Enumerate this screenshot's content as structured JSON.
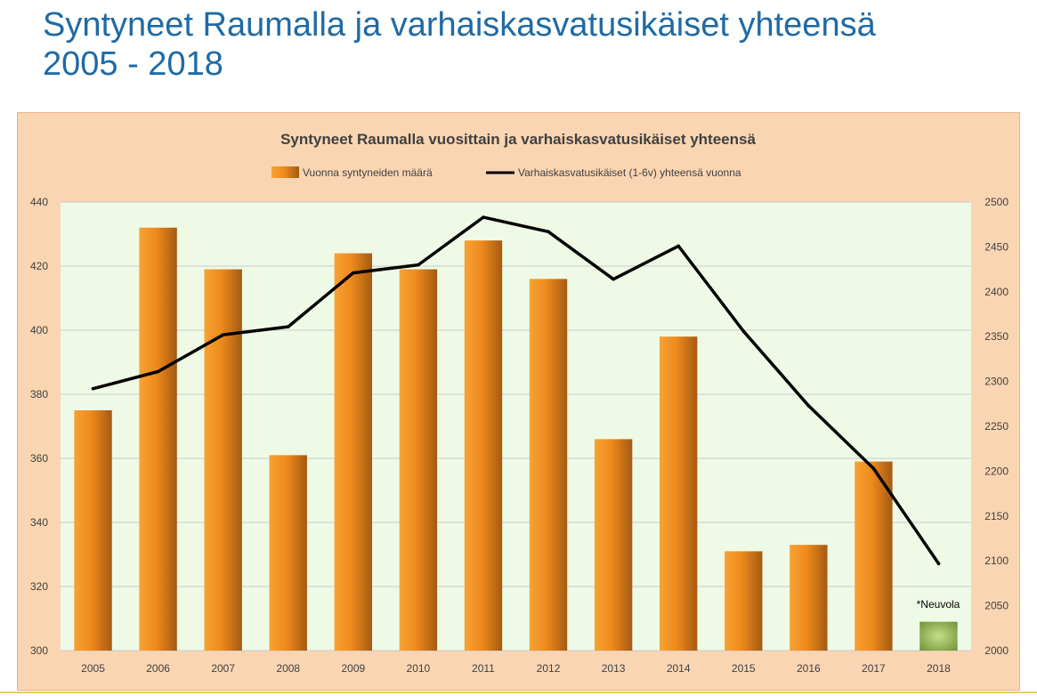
{
  "slide": {
    "title_line1": "Syntyneet Raumalla ja varhaiskasvatusikäiset yhteensä",
    "title_line2": "2005 - 2018"
  },
  "colors": {
    "title": "#1f6aa5",
    "chart_background": "#fad5b2",
    "plot_background": "#eefae6",
    "bar": "#f0901e",
    "bar_highlight": "#8fb04a",
    "line": "#000000"
  },
  "chart_data": {
    "type": "bar",
    "title": "Syntyneet Raumalla vuosittain ja varhaiskasvatusikäiset yhteensä",
    "categories": [
      "2005",
      "2006",
      "2007",
      "2008",
      "2009",
      "2010",
      "2011",
      "2012",
      "2013",
      "2014",
      "2015",
      "2016",
      "2017",
      "2018"
    ],
    "series": [
      {
        "name": "Vuonna syntyneiden määrä",
        "type": "bar",
        "axis": "left",
        "values": [
          375,
          432,
          419,
          361,
          424,
          419,
          428,
          416,
          366,
          398,
          331,
          333,
          359,
          309
        ]
      },
      {
        "name": "Varhaiskasvatusikäiset (1-6v) yhteensä vuonna",
        "type": "line",
        "axis": "right",
        "values": [
          2292,
          2311,
          2352,
          2361,
          2421,
          2430,
          2483,
          2467,
          2414,
          2451,
          2356,
          2273,
          2203,
          2097
        ]
      }
    ],
    "ylim": [
      300,
      440
    ],
    "y_ticks": [
      300,
      320,
      340,
      360,
      380,
      400,
      420,
      440
    ],
    "y2lim": [
      2000,
      2500
    ],
    "y2_ticks": [
      2000,
      2050,
      2100,
      2150,
      2200,
      2250,
      2300,
      2350,
      2400,
      2450,
      2500
    ],
    "grid": true,
    "legend_position": "top",
    "highlight_category": "2018",
    "annotation": "*Neuvola"
  }
}
